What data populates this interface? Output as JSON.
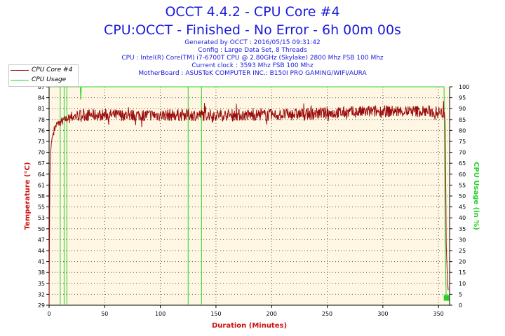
{
  "header": {
    "title": "OCCT 4.4.2 - CPU Core #4",
    "subtitle": "CPU:OCCT - Finished - No Error - 6h 00m 00s",
    "generated": "Generated by OCCT : 2016/05/15 09:31:42",
    "config": "Config : Large Data Set, 8 Threads",
    "cpu": "CPU : Intel(R) Core(TM) i7-6700T CPU @ 2.80GHz (Skylake) 2800 Mhz FSB 100 Mhz",
    "clock": "Current clock : 3593 Mhz FSB 100 Mhz",
    "motherboard": "MotherBoard : ASUSTeK COMPUTER INC.: B150I PRO GAMING/WIFI/AURA"
  },
  "legend": {
    "series1": "CPU Core #4",
    "series2": "CPU Usage"
  },
  "colors": {
    "temp": "#9b0c0c",
    "usage": "#2ad02a",
    "plot_bg": "#fff7e3",
    "grid": "#555555",
    "title": "#1a1adb",
    "axis_label": "#cc1010"
  },
  "chart_data": {
    "type": "line",
    "xlabel": "Duration (Minutes)",
    "ylabel_left": "Temperature (°C)",
    "ylabel_right": "CPU Usage (in %)",
    "xlim": [
      0,
      360
    ],
    "ylim_left": [
      29,
      87
    ],
    "ylim_right": [
      0,
      100
    ],
    "x_ticks": [
      "0",
      "50",
      "100",
      "150",
      "200",
      "250",
      "300",
      "350"
    ],
    "y_left_ticks": [
      "29",
      "32",
      "35",
      "38",
      "41",
      "44",
      "47",
      "50",
      "53",
      "55",
      "58",
      "61",
      "64",
      "67",
      "70",
      "73",
      "76",
      "78",
      "81",
      "84",
      "87"
    ],
    "y_right_ticks": [
      "0",
      "5",
      "10",
      "15",
      "20",
      "25",
      "30",
      "35",
      "40",
      "45",
      "50",
      "55",
      "60",
      "65",
      "70",
      "75",
      "80",
      "85",
      "90",
      "95",
      "100"
    ],
    "series": [
      {
        "name": "CPU Core #4",
        "axis": "left",
        "x": [
          0,
          0.5,
          1,
          2,
          3,
          5,
          7,
          10,
          13,
          16,
          20,
          30,
          50,
          100,
          150,
          200,
          250,
          300,
          340,
          356,
          357,
          358,
          359
        ],
        "values": [
          29,
          58,
          68,
          72,
          74,
          76,
          77,
          77.5,
          78,
          78.5,
          79,
          79.5,
          79.5,
          79.5,
          79.5,
          79.5,
          80,
          80.5,
          80.5,
          80,
          45,
          36,
          32
        ]
      },
      {
        "name": "CPU Usage",
        "axis": "right",
        "x": [
          0,
          1,
          28,
          28.5,
          29,
          355,
          356,
          357,
          359
        ],
        "values": [
          100,
          100,
          100,
          94,
          100,
          100,
          30,
          3,
          2
        ],
        "drops_to_zero_at": [
          10,
          13.5,
          16,
          125,
          137
        ]
      }
    ]
  }
}
